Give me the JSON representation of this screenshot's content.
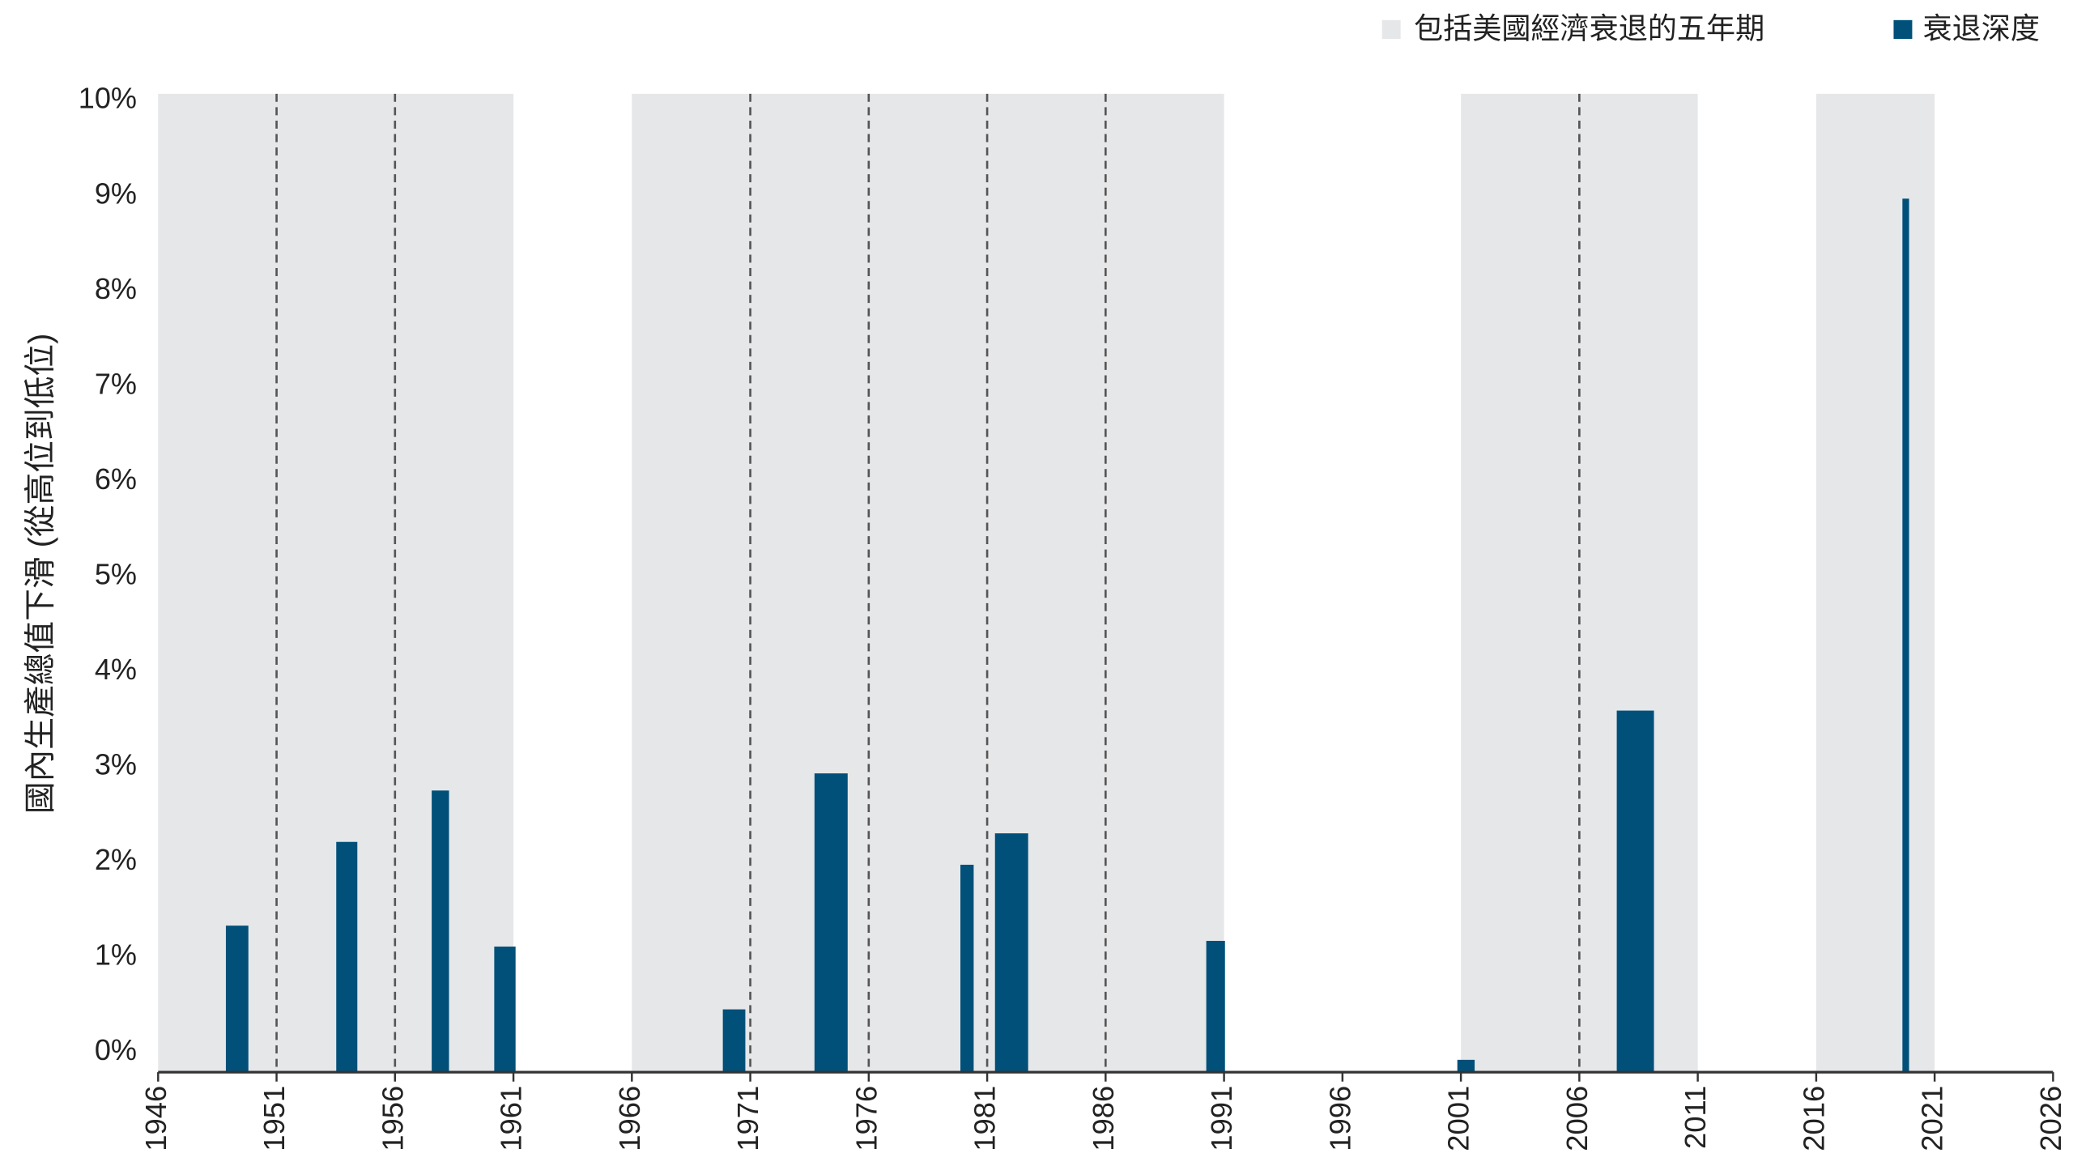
{
  "chart_data": {
    "type": "bar",
    "y_label": "國內生產總值下滑 (從高位到低位)",
    "xlim": [
      1946,
      2026
    ],
    "xticks": [
      1946,
      1951,
      1956,
      1961,
      1966,
      1971,
      1976,
      1981,
      1986,
      1991,
      1996,
      2001,
      2006,
      2011,
      2016,
      2021,
      2026
    ],
    "ylim": [
      0,
      10
    ],
    "yticks": [
      {
        "value": 0,
        "label": "0%"
      },
      {
        "value": 1,
        "label": "1%"
      },
      {
        "value": 2,
        "label": "2%"
      },
      {
        "value": 3,
        "label": "3%"
      },
      {
        "value": 4,
        "label": "4%"
      },
      {
        "value": 5,
        "label": "5%"
      },
      {
        "value": 6,
        "label": "6%"
      },
      {
        "value": 7,
        "label": "7%"
      },
      {
        "value": 8,
        "label": "8%"
      },
      {
        "value": 9,
        "label": "9%"
      },
      {
        "value": 10,
        "label": "10%"
      }
    ],
    "dashed_lines": [
      1951,
      1956,
      1971,
      1976,
      1981,
      1986,
      2006
    ],
    "shaded": {
      "name": "包括美國經濟衰退的五年期",
      "color": "#e6e7e9",
      "ranges": [
        [
          1946,
          1961
        ],
        [
          1966,
          1991
        ],
        [
          2001,
          2011
        ],
        [
          2016,
          2021
        ]
      ]
    },
    "bars": {
      "name": "衰退深度",
      "color": "#00507a",
      "x_start": [
        1948.86,
        1953.52,
        1957.55,
        1960.19,
        1969.84,
        1973.71,
        1979.87,
        1981.33,
        1990.25,
        2000.85,
        2007.58,
        2019.64
      ],
      "x_end": [
        1949.81,
        1954.41,
        1958.28,
        1961.09,
        1970.79,
        1975.11,
        1980.43,
        1982.73,
        1991.04,
        2001.58,
        2009.15,
        2019.92
      ],
      "values": [
        1.54,
        2.42,
        2.96,
        1.32,
        0.66,
        3.14,
        2.18,
        2.51,
        1.38,
        0.13,
        3.8,
        9.18
      ]
    }
  }
}
